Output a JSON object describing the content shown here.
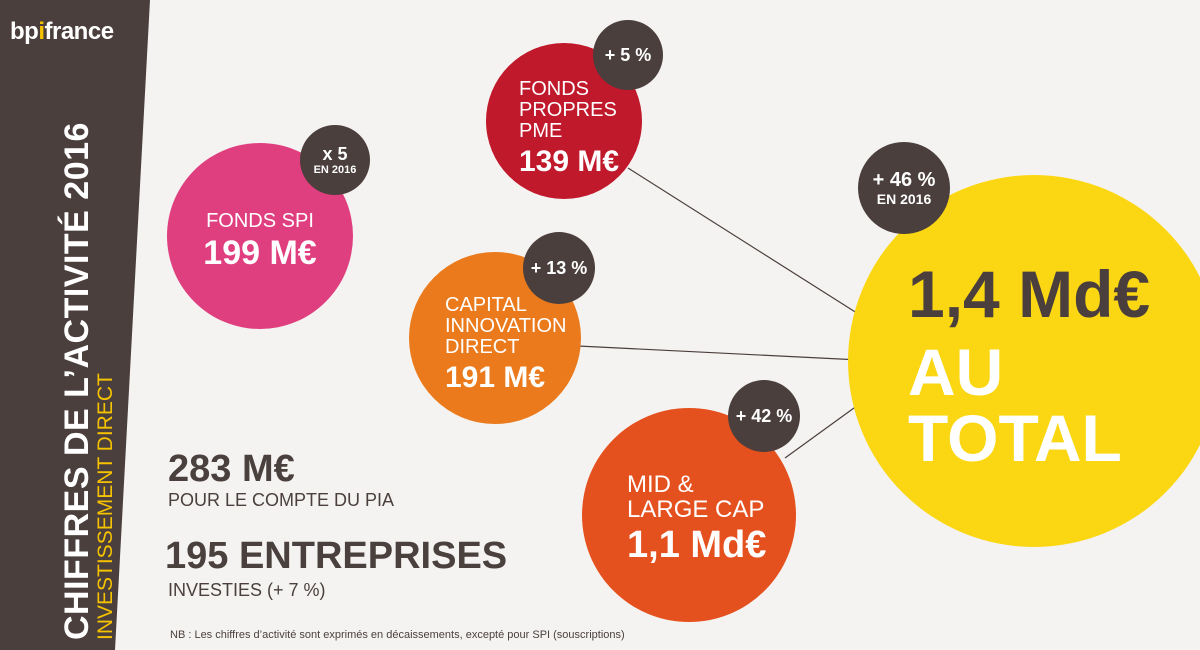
{
  "brand": {
    "logo_part1": "bp",
    "logo_dot": "i",
    "logo_part2": "france"
  },
  "sidebar": {
    "title": "CHIFFRES DE L’ACTIVITÉ 2016",
    "subtitle": "INVESTISSEMENT DIRECT"
  },
  "circles": {
    "fonds_spi": {
      "label": "FONDS SPI",
      "value": "199 M€",
      "color": "#e03f7f",
      "badge_main": "x 5",
      "badge_sub": "EN 2016"
    },
    "fonds_propres": {
      "label_lines": [
        "FONDS",
        "PROPRES",
        "PME"
      ],
      "label_1": "FONDS",
      "label_2": "PROPRES",
      "label_3": "PME",
      "value": "139 M€",
      "color": "#c0192b",
      "badge_main": "+ 5 %"
    },
    "capital_innovation": {
      "label_1": "CAPITAL",
      "label_2": "INNOVATION",
      "label_3": "DIRECT",
      "value": "191 M€",
      "color": "#ea7a1c",
      "badge_main": "+ 13 %"
    },
    "mid_large_cap": {
      "label_1": "MID &",
      "label_2": "LARGE CAP",
      "value": "1,1 Md€",
      "color": "#e5511e",
      "badge_main": "+ 42 %"
    },
    "total": {
      "value": "1,4 Md€",
      "label": "AU TOTAL",
      "color": "#fbd713",
      "badge_main": "+ 46 %",
      "badge_sub": "EN 2016"
    }
  },
  "stats": {
    "pia_value": "283 M€",
    "pia_label": "POUR LE COMPTE DU PIA",
    "companies_value": "195 ENTREPRISES",
    "companies_label": "INVESTIES (+ 7 %)"
  },
  "note": "NB : Les chiffres d’activité sont exprimés en décaissements, excepté pour SPI (souscriptions)"
}
